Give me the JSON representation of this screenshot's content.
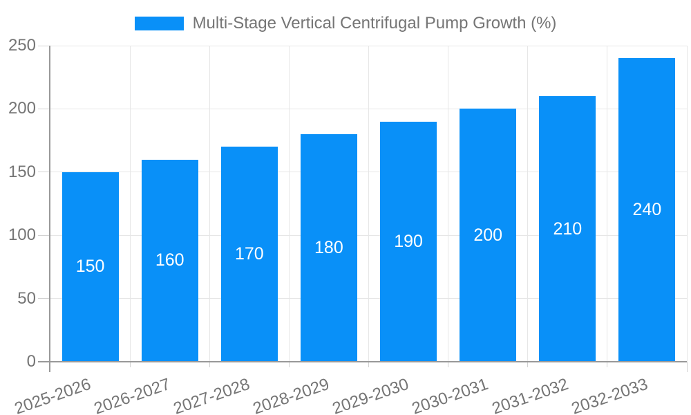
{
  "chart_data": {
    "type": "bar",
    "title": "Multi-Stage Vertical Centrifugal Pump Growth (%)",
    "categories": [
      "2025-2026",
      "2026-2027",
      "2027-2028",
      "2028-2029",
      "2029-2030",
      "2030-2031",
      "2031-2032",
      "2032-2033"
    ],
    "values": [
      150,
      160,
      170,
      180,
      190,
      200,
      210,
      240
    ],
    "series": [
      {
        "name": "Multi-Stage Vertical Centrifugal Pump Growth (%)",
        "values": [
          150,
          160,
          170,
          180,
          190,
          200,
          210,
          240
        ]
      }
    ],
    "xlabel": "",
    "ylabel": "",
    "ylim": [
      0,
      250
    ],
    "yticks": [
      0,
      50,
      100,
      150,
      200,
      250
    ],
    "grid": true,
    "legend_position": "top-center",
    "data_labels": {
      "position": "inside-center",
      "color": "#ffffff"
    },
    "colors": {
      "bar": "#0990f8",
      "axis_text": "#757575",
      "axis_line": "#999999",
      "gridline": "#e6e6e6",
      "tick": "#d2d2d2",
      "background": "#ffffff"
    }
  }
}
